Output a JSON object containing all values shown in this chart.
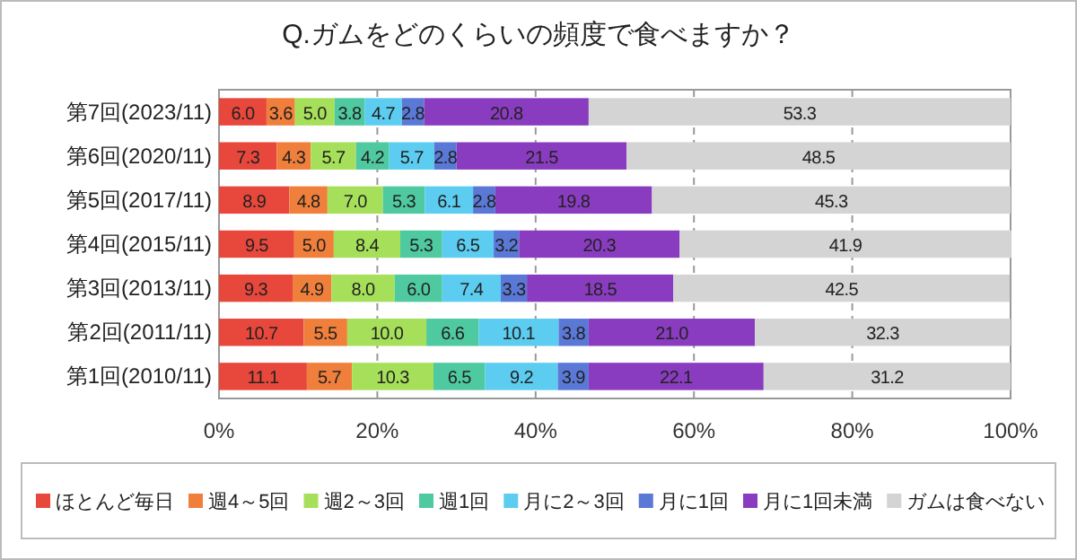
{
  "chart_data": {
    "type": "bar",
    "orientation": "horizontal",
    "stacked": true,
    "title": "Q.ガムをどのくらいの頻度で食べますか？",
    "categories": [
      "第7回(2023/11)",
      "第6回(2020/11)",
      "第5回(2017/11)",
      "第4回(2015/11)",
      "第3回(2013/11)",
      "第2回(2011/11)",
      "第1回(2010/11)"
    ],
    "series": [
      {
        "name": "ほとんど毎日",
        "color": "#e8473c",
        "values": [
          6.0,
          7.3,
          8.9,
          9.5,
          9.3,
          10.7,
          11.1
        ],
        "value_labels": [
          "6.0",
          "7.3",
          "8.9",
          "9.5",
          "9.3",
          "10.7",
          "11.1"
        ]
      },
      {
        "name": "週4～5回",
        "color": "#f07f3c",
        "values": [
          3.6,
          4.3,
          4.8,
          5.0,
          4.9,
          5.5,
          5.7
        ],
        "value_labels": [
          "3.6",
          "4.3",
          "4.8",
          "5.0",
          "4.9",
          "5.5",
          "5.7"
        ]
      },
      {
        "name": "週2～3回",
        "color": "#a6e05a",
        "values": [
          5.0,
          5.7,
          7.0,
          8.4,
          8.0,
          10.0,
          10.3
        ],
        "value_labels": [
          "5.0",
          "5.7",
          "7.0",
          "8.4",
          "8.0",
          "10.0",
          "10.3"
        ]
      },
      {
        "name": "週1回",
        "color": "#4fc9a0",
        "values": [
          3.8,
          4.2,
          5.3,
          5.3,
          6.0,
          6.6,
          6.5
        ],
        "value_labels": [
          "3.8",
          "4.2",
          "5.3",
          "5.3",
          "6.0",
          "6.6",
          "6.5"
        ]
      },
      {
        "name": "月に2～3回",
        "color": "#5ccdf0",
        "values": [
          4.7,
          5.7,
          6.1,
          6.5,
          7.4,
          10.1,
          9.2
        ],
        "value_labels": [
          "4.7",
          "5.7",
          "6.1",
          "6.5",
          "7.4",
          "10.1",
          "9.2"
        ]
      },
      {
        "name": "月に1回",
        "color": "#5a78d6",
        "values": [
          2.8,
          2.8,
          2.8,
          3.2,
          3.3,
          3.8,
          3.9
        ],
        "value_labels": [
          "2.8",
          "2.8",
          "2.8",
          "3.2",
          "3.3",
          "3.8",
          "3.9"
        ]
      },
      {
        "name": "月に1回未満",
        "color": "#8a3cc0",
        "values": [
          20.8,
          21.5,
          19.8,
          20.3,
          18.5,
          21.0,
          22.1
        ],
        "value_labels": [
          "20.8",
          "21.5",
          "19.8",
          "20.3",
          "18.5",
          "21.0",
          "22.1"
        ]
      },
      {
        "name": "ガムは食べない",
        "color": "#d4d4d4",
        "values": [
          53.3,
          48.5,
          45.3,
          41.9,
          42.5,
          32.3,
          31.2
        ],
        "value_labels": [
          "53.3",
          "48.5",
          "45.3",
          "41.9",
          "42.5",
          "32.3",
          "31.2"
        ]
      }
    ],
    "xlim": [
      0,
      100
    ],
    "xticks": [
      {
        "value": 0,
        "label": "0%"
      },
      {
        "value": 20,
        "label": "20%"
      },
      {
        "value": 40,
        "label": "40%"
      },
      {
        "value": 60,
        "label": "60%"
      },
      {
        "value": 80,
        "label": "80%"
      },
      {
        "value": 100,
        "label": "100%"
      }
    ],
    "grid": "x",
    "legend": "bottom"
  }
}
